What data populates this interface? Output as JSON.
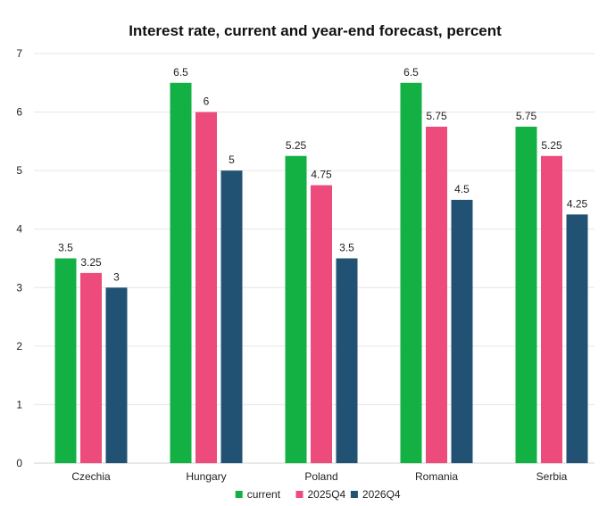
{
  "chart_data": {
    "type": "bar",
    "title": "Interest rate, current and year-end forecast, percent",
    "xlabel": "",
    "ylabel": "",
    "categories": [
      "Czechia",
      "Hungary",
      "Poland",
      "Romania",
      "Serbia"
    ],
    "series": [
      {
        "name": "current",
        "color": "#13b043",
        "values": [
          3.5,
          6.5,
          5.25,
          6.5,
          5.75
        ],
        "labels": [
          "3.5",
          "6.5",
          "5.25",
          "6.5",
          "5.75"
        ]
      },
      {
        "name": "2025Q4",
        "color": "#ee4b7d",
        "values": [
          3.25,
          6,
          4.75,
          5.75,
          5.25
        ],
        "labels": [
          "3.25",
          "6",
          "4.75",
          "5.75",
          "5.25"
        ]
      },
      {
        "name": "2026Q4",
        "color": "#225273",
        "values": [
          3,
          5,
          3.5,
          4.5,
          4.25
        ],
        "labels": [
          "3",
          "5",
          "3.5",
          "4.5",
          "4.25"
        ]
      }
    ],
    "ylim": [
      0,
      7
    ],
    "yticks": [
      "0",
      "1",
      "2",
      "3",
      "4",
      "5",
      "6",
      "7"
    ],
    "grid": true,
    "legend_position": "bottom"
  }
}
